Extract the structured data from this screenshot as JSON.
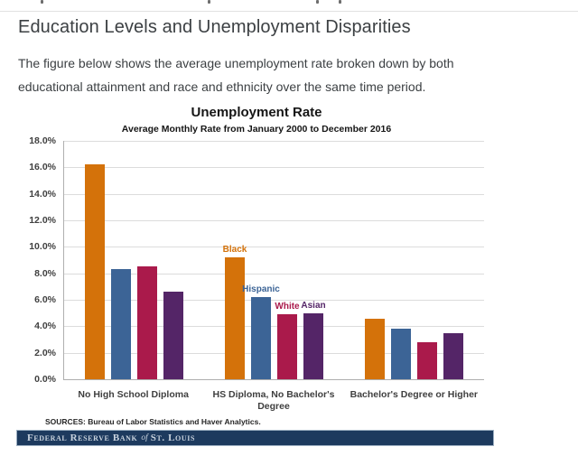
{
  "page": {
    "heading": "Education Levels and Unemployment Disparities",
    "intro": "The figure below shows the average unemployment rate broken down by both educational attainment and race and ethnicity over the same time period."
  },
  "chart_data": {
    "type": "bar",
    "title": "Unemployment Rate",
    "subtitle": "Average Monthly Rate from January 2000 to December 2016",
    "categories": [
      "No High School Diploma",
      "HS Diploma, No Bachelor's Degree",
      "Bachelor's Degree or Higher"
    ],
    "series": [
      {
        "name": "Black",
        "color": "#d4720a",
        "values": [
          16.2,
          9.2,
          4.6
        ],
        "label_at_category": 1
      },
      {
        "name": "Hispanic",
        "color": "#3c6496",
        "values": [
          8.3,
          6.2,
          3.8
        ],
        "label_at_category": 1
      },
      {
        "name": "White",
        "color": "#aa1a4b",
        "values": [
          8.5,
          4.9,
          2.8
        ],
        "label_at_category": 1
      },
      {
        "name": "Asian",
        "color": "#542567",
        "values": [
          6.6,
          5.0,
          3.5
        ],
        "label_at_category": 1
      }
    ],
    "ylim": [
      0,
      18
    ],
    "yticks": [
      "18.0%",
      "16.0%",
      "14.0%",
      "12.0%",
      "10.0%",
      "8.0%",
      "6.0%",
      "4.0%",
      "2.0%",
      "0.0%"
    ],
    "grid": "horizontal",
    "legend_position": "inline-annotations",
    "source": "SOURCES: Bureau of Labor Statistics and Haver Analytics."
  },
  "footer": {
    "bank": "Federal Reserve Bank",
    "of": "of",
    "city": "St. Louis"
  }
}
